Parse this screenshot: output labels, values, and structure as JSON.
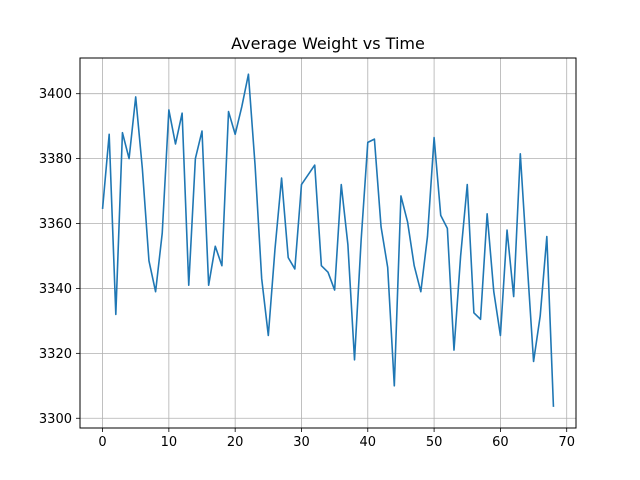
{
  "chart_data": {
    "type": "line",
    "title": "Average Weight vs Time",
    "xlabel": "",
    "ylabel": "",
    "xlim": [
      -3.4,
      71.4
    ],
    "ylim": [
      3297,
      3411
    ],
    "xticks": [
      0,
      10,
      20,
      30,
      40,
      50,
      60,
      70
    ],
    "yticks": [
      3300,
      3320,
      3340,
      3360,
      3380,
      3400
    ],
    "grid": true,
    "line_color": "#1f77b4",
    "series": [
      {
        "x": [
          0,
          1,
          2,
          3,
          4,
          5,
          6,
          7,
          8,
          9,
          10,
          11,
          12,
          13,
          14,
          15,
          16,
          17,
          18,
          19,
          20,
          21,
          22,
          23,
          24,
          25,
          26,
          27,
          28,
          29,
          30,
          31,
          32,
          33,
          34,
          35,
          36,
          37,
          38,
          39,
          40,
          41,
          42,
          43,
          44,
          45,
          46,
          47,
          48,
          49,
          50,
          51,
          52,
          53,
          54,
          55,
          56,
          57,
          58,
          59,
          60,
          61,
          62,
          63,
          64,
          65,
          66,
          67,
          68
        ],
        "values": [
          3364.5,
          3387.5,
          3332,
          3388,
          3380,
          3399,
          3377,
          3348.5,
          3339,
          3357,
          3395,
          3384.5,
          3394,
          3341,
          3380,
          3388.5,
          3341,
          3353,
          3347,
          3394.5,
          3387.5,
          3396,
          3406,
          3378,
          3343,
          3325.5,
          3352,
          3374,
          3349.5,
          3346,
          3372,
          3375,
          3378,
          3347,
          3345,
          3339.5,
          3372,
          3353.5,
          3318,
          3355,
          3385,
          3386,
          3359,
          3346.5,
          3310,
          3368.5,
          3360.5,
          3347,
          3339,
          3356,
          3386.5,
          3362.5,
          3358.5,
          3321,
          3350,
          3372,
          3332.5,
          3330.5,
          3363,
          3339,
          3325.5,
          3358,
          3337.5,
          3381.5,
          3349,
          3317.5,
          3331.5,
          3356,
          3303.5
        ]
      }
    ]
  }
}
